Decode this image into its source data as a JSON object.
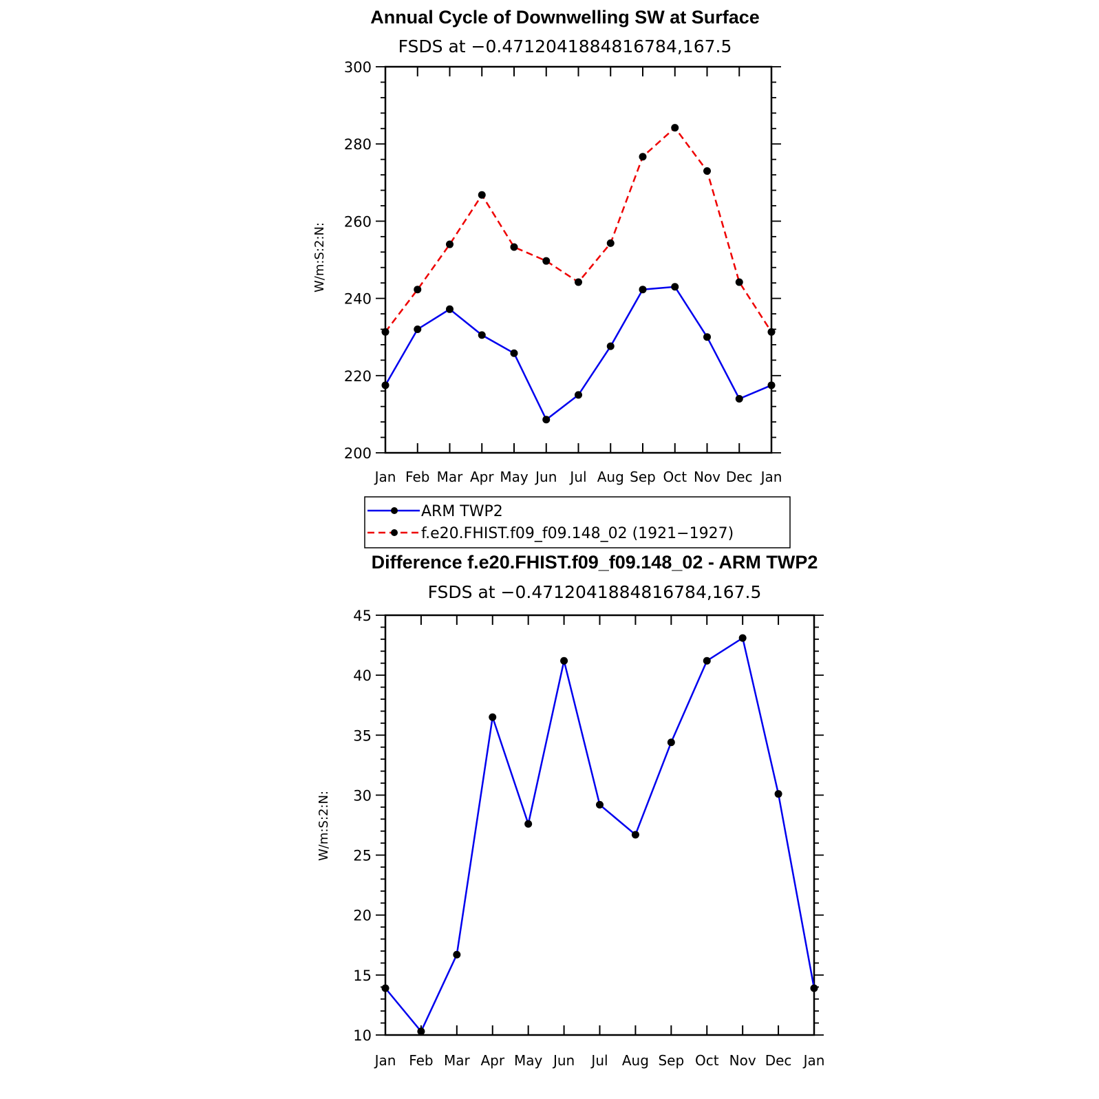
{
  "chart_data": [
    {
      "type": "line",
      "title": "Annual Cycle of Downwelling SW at Surface",
      "subtitle": "FSDS at −0.4712041884816784,167.5",
      "ylabel": "W/m:S:2:N:",
      "categories": [
        "Jan",
        "Feb",
        "Mar",
        "Apr",
        "May",
        "Jun",
        "Jul",
        "Aug",
        "Sep",
        "Oct",
        "Nov",
        "Dec",
        "Jan"
      ],
      "yticks": [
        "200",
        "220",
        "240",
        "260",
        "280",
        "300"
      ],
      "ylim": [
        200,
        300
      ],
      "grid": false,
      "legend_position": "below",
      "series": [
        {
          "name": "ARM TWP2",
          "color": "#0000ee",
          "dash": "solid",
          "values": [
            217.5,
            232.0,
            237.2,
            230.5,
            225.8,
            208.6,
            215.0,
            227.6,
            242.3,
            243.0,
            230.0,
            214.0,
            217.5
          ]
        },
        {
          "name": "f.e20.FHIST.f09_f09.148_02 (1921−1927)",
          "color": "#ee0000",
          "dash": "dashed",
          "values": [
            231.3,
            242.3,
            254.0,
            266.8,
            253.3,
            249.7,
            244.2,
            254.3,
            276.7,
            284.2,
            273.0,
            244.2,
            231.3
          ]
        }
      ]
    },
    {
      "type": "line",
      "title": "Difference f.e20.FHIST.f09_f09.148_02 - ARM TWP2",
      "subtitle": "FSDS at −0.4712041884816784,167.5",
      "ylabel": "W/m:S:2:N:",
      "categories": [
        "Jan",
        "Feb",
        "Mar",
        "Apr",
        "May",
        "Jun",
        "Jul",
        "Aug",
        "Sep",
        "Oct",
        "Nov",
        "Dec",
        "Jan"
      ],
      "yticks": [
        "10",
        "15",
        "20",
        "25",
        "30",
        "35",
        "40",
        "45"
      ],
      "ylim": [
        10,
        45
      ],
      "grid": false,
      "series": [
        {
          "color": "#0000ee",
          "dash": "solid",
          "values": [
            13.9,
            10.3,
            16.7,
            36.5,
            27.6,
            41.2,
            29.2,
            26.7,
            34.4,
            41.2,
            43.1,
            30.1,
            13.9
          ]
        }
      ]
    }
  ]
}
